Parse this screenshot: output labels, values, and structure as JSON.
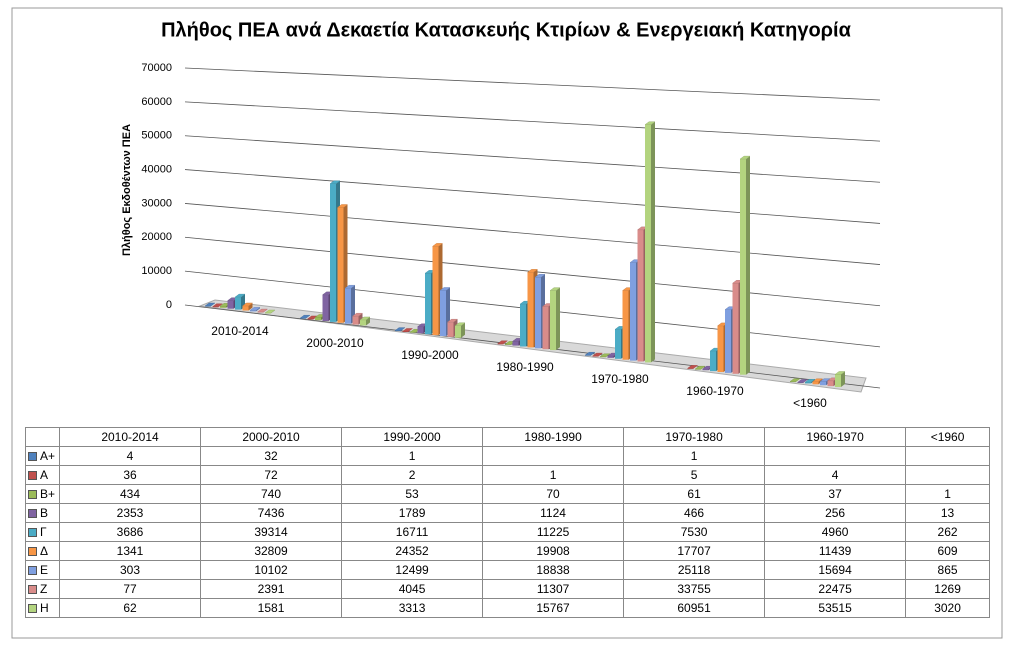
{
  "chart_data": {
    "type": "bar3d",
    "title": "Πλήθος ΠΕΑ ανά Δεκαετία Κατασκευής Κτιρίων & Ενεργειακή Κατηγορία",
    "y_label": "Πλήθος Εκδοθέντων ΠΕΑ",
    "categories": [
      "2010-2014",
      "2000-2010",
      "1990-2000",
      "1980-1990",
      "1970-1980",
      "1960-1970",
      "<1960"
    ],
    "ylim": [
      0,
      70000
    ],
    "yticks": [
      0,
      10000,
      20000,
      30000,
      40000,
      50000,
      60000,
      70000
    ],
    "grid": true,
    "series": [
      {
        "name": "Α+",
        "color": "#4f81bd",
        "values": [
          4,
          32,
          1,
          null,
          1,
          null,
          null
        ]
      },
      {
        "name": "Α",
        "color": "#c0504d",
        "values": [
          36,
          72,
          2,
          1,
          5,
          4,
          null
        ]
      },
      {
        "name": "Β+",
        "color": "#9bbb59",
        "values": [
          434,
          740,
          53,
          70,
          61,
          37,
          1
        ]
      },
      {
        "name": "Β",
        "color": "#8064a2",
        "values": [
          2353,
          7436,
          1789,
          1124,
          466,
          256,
          13
        ]
      },
      {
        "name": "Γ",
        "color": "#4bacc6",
        "values": [
          3686,
          39314,
          16711,
          11225,
          7530,
          4960,
          262
        ]
      },
      {
        "name": "Δ",
        "color": "#f79646",
        "values": [
          1341,
          32809,
          24352,
          19908,
          17707,
          11439,
          609
        ]
      },
      {
        "name": "Ε",
        "color": "#7f9fe0",
        "values": [
          303,
          10102,
          12499,
          18838,
          25118,
          15694,
          865
        ]
      },
      {
        "name": "Ζ",
        "color": "#d98c8a",
        "values": [
          77,
          2391,
          4045,
          11307,
          33755,
          22475,
          1269
        ]
      },
      {
        "name": "Η",
        "color": "#b3d47f",
        "values": [
          62,
          1581,
          3313,
          15767,
          60951,
          53515,
          3020
        ]
      }
    ]
  }
}
